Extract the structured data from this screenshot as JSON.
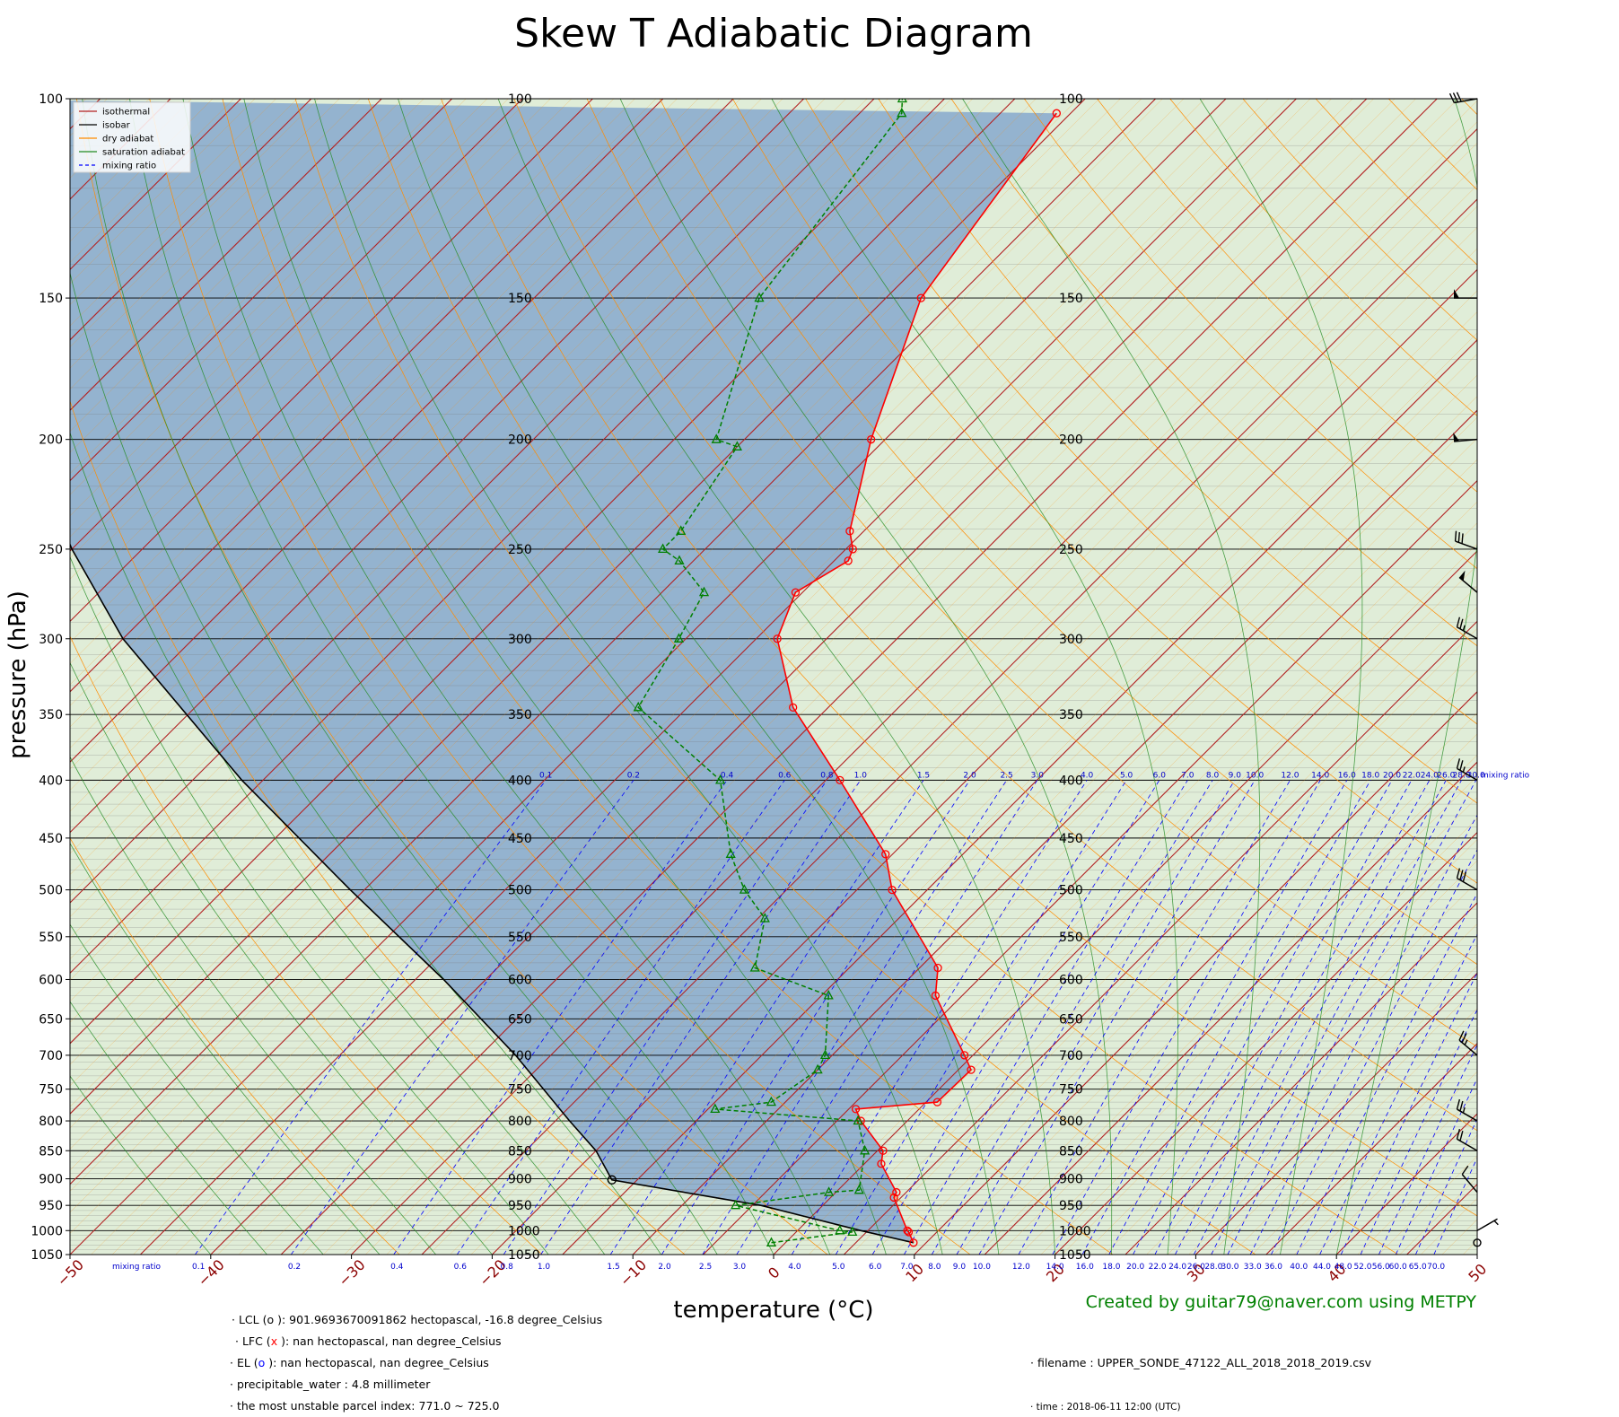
{
  "title": "Skew T Adiabatic Diagram",
  "xlabel": "temperature (°C)",
  "ylabel": "pressure (hPa)",
  "credit": "Created by guitar79@naver.com using METPY",
  "legend": [
    {
      "label": "isothermal",
      "color": "#b22222",
      "dash": "none"
    },
    {
      "label": "isobar",
      "color": "#000000",
      "dash": "none"
    },
    {
      "label": "dry adiabat",
      "color": "#ff8c00",
      "dash": "none"
    },
    {
      "label": "saturation adiabat",
      "color": "#228b22",
      "dash": "none"
    },
    {
      "label": "mixing ratio",
      "color": "#0000ff",
      "dash": "4,3"
    }
  ],
  "info": {
    "lcl": "· LCL (o ): 901.9693670091862 hectopascal, -16.8 degree_Celsius",
    "lfc_pre": "· LFC (",
    "lfc_mark": "x",
    "lfc_post": " ): nan hectopascal, nan degree_Celsius",
    "el_pre": "· EL   (",
    "el_mark": "o",
    "el_post": " ): nan hectopascal, nan degree_Celsius",
    "pw": "· precipitable_water : 4.8 millimeter",
    "mu": "· the most unstable parcel index: 771.0 ~ 725.0",
    "filename": "· filename : UPPER_SONDE_47122_ALL_2018_2018_2019.csv",
    "time": "· time : 2018-06-11 12:00 (UTC)"
  },
  "chart_data": {
    "type": "skewt",
    "pressure_ticks": [
      100,
      150,
      200,
      250,
      300,
      350,
      400,
      450,
      500,
      550,
      600,
      650,
      700,
      750,
      800,
      850,
      900,
      950,
      1000,
      1050
    ],
    "temperature_ticks": [
      -50,
      -40,
      -30,
      -20,
      -10,
      0,
      10,
      20,
      30,
      40,
      50
    ],
    "xlim": [
      -50,
      50
    ],
    "ylim": [
      1050,
      100
    ],
    "log_pressure": true,
    "grid": true,
    "legend_position": "top-left",
    "colors": {
      "temperature": "#ff0000",
      "dewpoint": "#008000",
      "parcel": "#000000",
      "cape_fill": "#8fb0cf",
      "cin_fill": "#d3e6c8",
      "isobar": "#000000",
      "isotherm": "#b22222",
      "dry_adiabat": "#ff8c00",
      "moist_adiabat": "#228b22",
      "mixing_ratio": "#0000ff",
      "wind_barb": "#000000"
    },
    "temperature_profile": [
      {
        "p": 1025,
        "t": 9.1
      },
      {
        "p": 1003,
        "t": 8.0
      },
      {
        "p": 1000,
        "t": 7.8
      },
      {
        "p": 935,
        "t": 4.5
      },
      {
        "p": 925,
        "t": 4.3
      },
      {
        "p": 873,
        "t": 1.2
      },
      {
        "p": 850,
        "t": 0.4
      },
      {
        "p": 800,
        "t": -3.3
      },
      {
        "p": 781,
        "t": -4.5
      },
      {
        "p": 770,
        "t": 0.8
      },
      {
        "p": 721,
        "t": 0.9
      },
      {
        "p": 700,
        "t": -0.6
      },
      {
        "p": 620,
        "t": -6.9
      },
      {
        "p": 586,
        "t": -8.7
      },
      {
        "p": 500,
        "t": -17.5
      },
      {
        "p": 465,
        "t": -20.5
      },
      {
        "p": 400,
        "t": -29.0
      },
      {
        "p": 345,
        "t": -37.5
      },
      {
        "p": 300,
        "t": -43.5
      },
      {
        "p": 273,
        "t": -45.5
      },
      {
        "p": 256,
        "t": -44.0
      },
      {
        "p": 250,
        "t": -44.5
      },
      {
        "p": 241,
        "t": -46.0
      },
      {
        "p": 200,
        "t": -51.0
      },
      {
        "p": 150,
        "t": -57.5
      },
      {
        "p": 103,
        "t": -61.0
      }
    ],
    "dewpoint_profile": [
      {
        "p": 1025,
        "t": -1.0
      },
      {
        "p": 1003,
        "t": 4.0
      },
      {
        "p": 1000,
        "t": 3.0
      },
      {
        "p": 950,
        "t": -6.2
      },
      {
        "p": 925,
        "t": -0.5
      },
      {
        "p": 921,
        "t": 1.5
      },
      {
        "p": 850,
        "t": -0.9
      },
      {
        "p": 800,
        "t": -3.5
      },
      {
        "p": 781,
        "t": -14.5
      },
      {
        "p": 770,
        "t": -11.0
      },
      {
        "p": 721,
        "t": -10.0
      },
      {
        "p": 700,
        "t": -10.5
      },
      {
        "p": 620,
        "t": -14.5
      },
      {
        "p": 586,
        "t": -21.7
      },
      {
        "p": 530,
        "t": -24.5
      },
      {
        "p": 500,
        "t": -28.0
      },
      {
        "p": 465,
        "t": -31.5
      },
      {
        "p": 400,
        "t": -37.5
      },
      {
        "p": 345,
        "t": -48.5
      },
      {
        "p": 300,
        "t": -50.5
      },
      {
        "p": 273,
        "t": -52.0
      },
      {
        "p": 256,
        "t": -56.0
      },
      {
        "p": 250,
        "t": -58.0
      },
      {
        "p": 241,
        "t": -58.0
      },
      {
        "p": 203,
        "t": -60.0
      },
      {
        "p": 200,
        "t": -62.0
      },
      {
        "p": 150,
        "t": -69.0
      },
      {
        "p": 103,
        "t": -72.0
      },
      {
        "p": 100,
        "t": -73.0
      }
    ],
    "parcel_profile": [
      {
        "p": 1025,
        "t": 9.1
      },
      {
        "p": 1000,
        "t": 4.5
      },
      {
        "p": 950,
        "t": -4.4
      },
      {
        "p": 901.97,
        "t": -16.8
      },
      {
        "p": 850,
        "t": -20.0
      },
      {
        "p": 800,
        "t": -24.0
      },
      {
        "p": 700,
        "t": -32.5
      },
      {
        "p": 600,
        "t": -43.0
      },
      {
        "p": 500,
        "t": -56.0
      },
      {
        "p": 400,
        "t": -71.5
      },
      {
        "p": 300,
        "t": -90.0
      },
      {
        "p": 250,
        "t": -100.0
      },
      {
        "p": 200,
        "t": -111.0
      },
      {
        "p": 150,
        "t": -124.0
      },
      {
        "p": 100,
        "t": -142.0
      }
    ],
    "lcl": {
      "p": 901.97,
      "t": -16.8
    },
    "mixing_ratio_labels": [
      "0.1",
      "0.2",
      "0.4",
      "0.6",
      "0.8",
      "1.0",
      "1.5",
      "2.0",
      "2.5",
      "3.0",
      "4.0",
      "5.0",
      "6.0",
      "7.0",
      "8.0",
      "9.0",
      "10.0",
      "12.0",
      "14.0",
      "16.0",
      "18.0",
      "20.0",
      "22.0",
      "24.0",
      "26.0",
      "28.0",
      "30.0",
      "33.0",
      "36.0",
      "40.0",
      "44.0",
      "48.0",
      "52.0",
      "56.0",
      "60.0",
      "65.0",
      "70.0"
    ],
    "mixing_ratio_title": "mixing ratio",
    "wind_barbs": [
      {
        "p": 100,
        "speed": 30,
        "dir": 260
      },
      {
        "p": 150,
        "speed": 50,
        "dir": 270
      },
      {
        "p": 200,
        "speed": 50,
        "dir": 265
      },
      {
        "p": 250,
        "speed": 30,
        "dir": 290
      },
      {
        "p": 273,
        "speed": 50,
        "dir": 310
      },
      {
        "p": 300,
        "speed": 25,
        "dir": 300
      },
      {
        "p": 400,
        "speed": 25,
        "dir": 300
      },
      {
        "p": 500,
        "speed": 30,
        "dir": 300
      },
      {
        "p": 700,
        "speed": 25,
        "dir": 310
      },
      {
        "p": 800,
        "speed": 25,
        "dir": 300
      },
      {
        "p": 850,
        "speed": 20,
        "dir": 300
      },
      {
        "p": 925,
        "speed": 10,
        "dir": 320
      },
      {
        "p": 1000,
        "speed": 5,
        "dir": 60
      },
      {
        "p": 1025,
        "speed": 0,
        "dir": 0
      }
    ]
  }
}
